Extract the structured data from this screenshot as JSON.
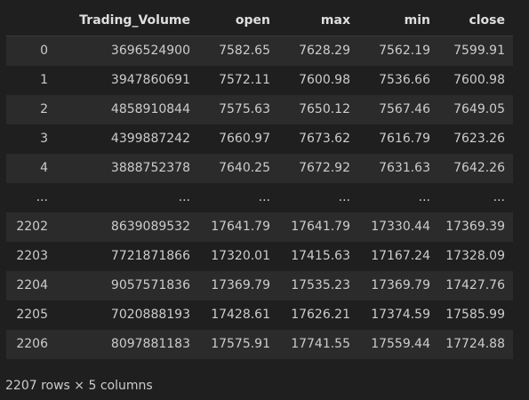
{
  "table": {
    "index_header": "",
    "columns": [
      "Trading_Volume",
      "open",
      "max",
      "min",
      "close"
    ],
    "rows": [
      {
        "index": "0",
        "cells": [
          "3696524900",
          "7582.65",
          "7628.29",
          "7562.19",
          "7599.91"
        ]
      },
      {
        "index": "1",
        "cells": [
          "3947860691",
          "7572.11",
          "7600.98",
          "7536.66",
          "7600.98"
        ]
      },
      {
        "index": "2",
        "cells": [
          "4858910844",
          "7575.63",
          "7650.12",
          "7567.46",
          "7649.05"
        ]
      },
      {
        "index": "3",
        "cells": [
          "4399887242",
          "7660.97",
          "7673.62",
          "7616.79",
          "7623.26"
        ]
      },
      {
        "index": "4",
        "cells": [
          "3888752378",
          "7640.25",
          "7672.92",
          "7631.63",
          "7642.26"
        ]
      },
      {
        "index": "...",
        "cells": [
          "...",
          "...",
          "...",
          "...",
          "..."
        ]
      },
      {
        "index": "2202",
        "cells": [
          "8639089532",
          "17641.79",
          "17641.79",
          "17330.44",
          "17369.39"
        ]
      },
      {
        "index": "2203",
        "cells": [
          "7721871866",
          "17320.01",
          "17415.63",
          "17167.24",
          "17328.09"
        ]
      },
      {
        "index": "2204",
        "cells": [
          "9057571836",
          "17369.79",
          "17535.23",
          "17369.79",
          "17427.76"
        ]
      },
      {
        "index": "2205",
        "cells": [
          "7020888193",
          "17428.61",
          "17626.21",
          "17374.59",
          "17585.99"
        ]
      },
      {
        "index": "2206",
        "cells": [
          "8097881183",
          "17575.91",
          "17741.55",
          "17559.44",
          "17724.88"
        ]
      }
    ]
  },
  "footer": {
    "shape_text": "2207 rows × 5 columns"
  }
}
